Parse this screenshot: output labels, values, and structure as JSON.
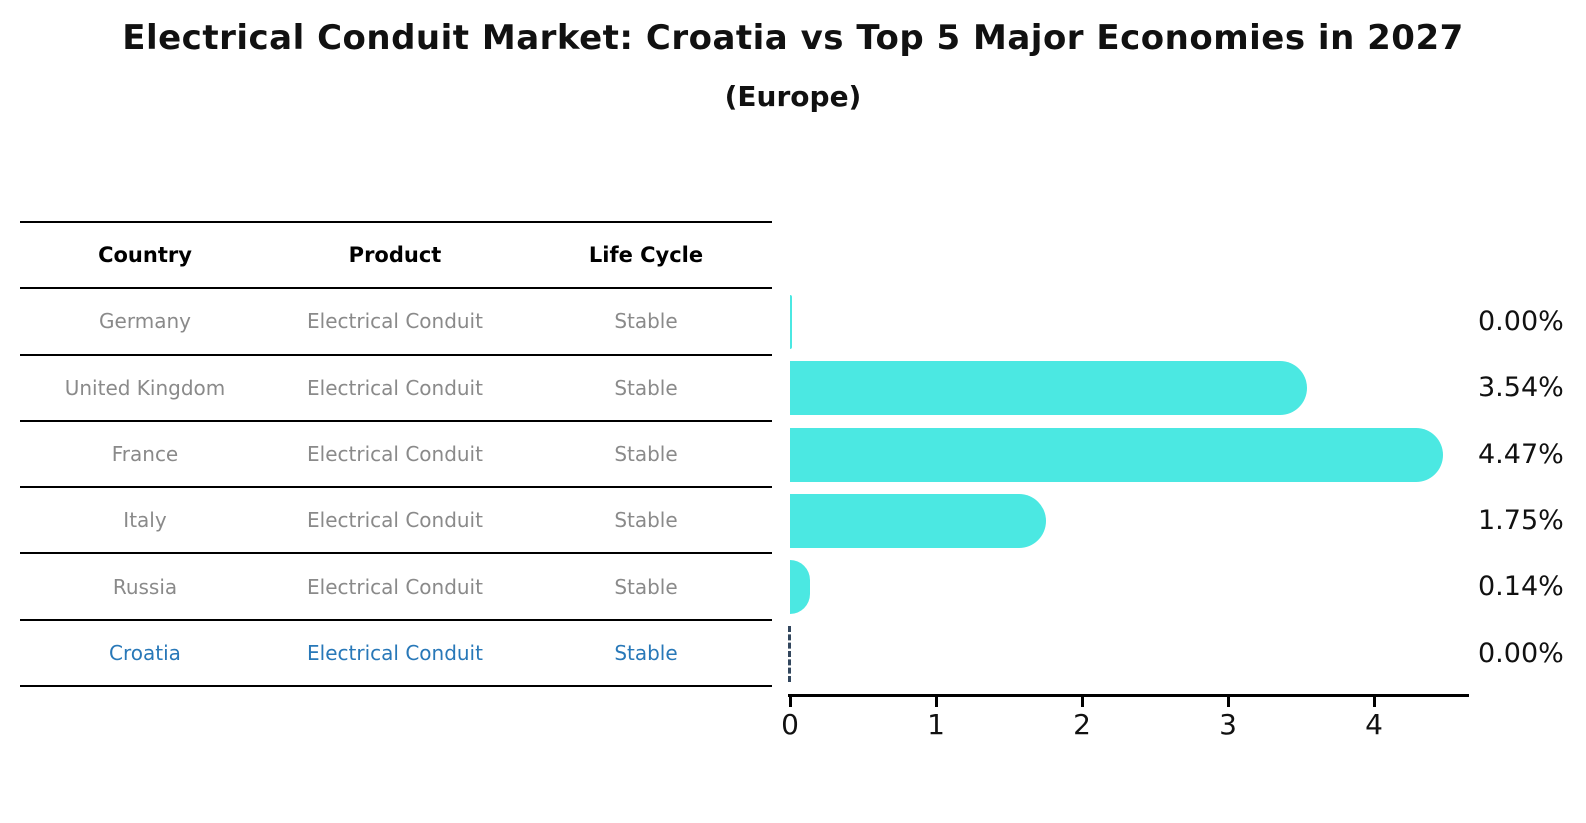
{
  "title": "Electrical Conduit Market: Croatia vs Top 5 Major Economies in 2027",
  "subtitle": "(Europe)",
  "table": {
    "headers": [
      "Country",
      "Product",
      "Life Cycle"
    ],
    "rows": [
      {
        "country": "Germany",
        "product": "Electrical Conduit",
        "life_cycle": "Stable",
        "highlight": false
      },
      {
        "country": "United Kingdom",
        "product": "Electrical Conduit",
        "life_cycle": "Stable",
        "highlight": false
      },
      {
        "country": "France",
        "product": "Electrical Conduit",
        "life_cycle": "Stable",
        "highlight": false
      },
      {
        "country": "Italy",
        "product": "Electrical Conduit",
        "life_cycle": "Stable",
        "highlight": false
      },
      {
        "country": "Russia",
        "product": "Electrical Conduit",
        "life_cycle": "Stable",
        "highlight": true
      }
    ],
    "highlight_row": {
      "country": "Croatia",
      "product": "Electrical Conduit",
      "life_cycle": "Stable"
    }
  },
  "chart_data": {
    "type": "bar",
    "orientation": "horizontal",
    "title": "Electrical Conduit Market: Croatia vs Top 5 Major Economies in 2027 (Europe)",
    "categories": [
      "Germany",
      "United Kingdom",
      "France",
      "Italy",
      "Russia",
      "Croatia"
    ],
    "values": [
      0.0,
      3.54,
      4.47,
      1.75,
      0.14,
      0.0
    ],
    "value_labels": [
      "0.00%",
      "3.54%",
      "4.47%",
      "1.75%",
      "0.14%",
      "0.00%"
    ],
    "x_ticks": [
      "0",
      "1",
      "2",
      "3",
      "4"
    ],
    "xlim": [
      0,
      4.65
    ],
    "grid": false,
    "legend": false,
    "bar_color": "#4be8e2",
    "highlight_index": 5,
    "highlight_marker": "dashed-vertical-line-at-zero",
    "highlight_marker_color": "#33475e"
  },
  "colors": {
    "background": "#ffffff",
    "bar": "#4be8e2",
    "table_line": "#000000",
    "row_text": "#8a8a8a",
    "highlight_text": "#2878b8",
    "axis": "#000000",
    "marker_dash": "#33475e"
  }
}
